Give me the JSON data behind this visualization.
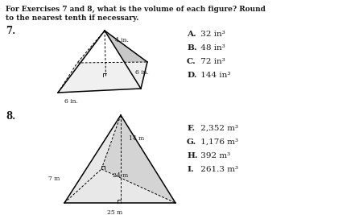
{
  "title_line1": "For Exercises 7 and 8, what is the volume of each figure? Round",
  "title_line2": "to the nearest tenth if necessary.",
  "ex7_label": "7.",
  "ex8_label": "8.",
  "q7_answers": [
    {
      "letter": "A.",
      "text": " 32 in³"
    },
    {
      "letter": "B.",
      "text": " 48 in³"
    },
    {
      "letter": "C.",
      "text": " 72 in³"
    },
    {
      "letter": "D.",
      "text": " 144 in³"
    }
  ],
  "q8_answers": [
    {
      "letter": "F.",
      "text": " 2,352 m³"
    },
    {
      "letter": "G.",
      "text": " 1,176 m³"
    },
    {
      "letter": "H.",
      "text": " 392 m³"
    },
    {
      "letter": "I.",
      "text": " 261.3 m³"
    }
  ],
  "bg_color": "#ffffff",
  "text_color": "#1a1a1a"
}
